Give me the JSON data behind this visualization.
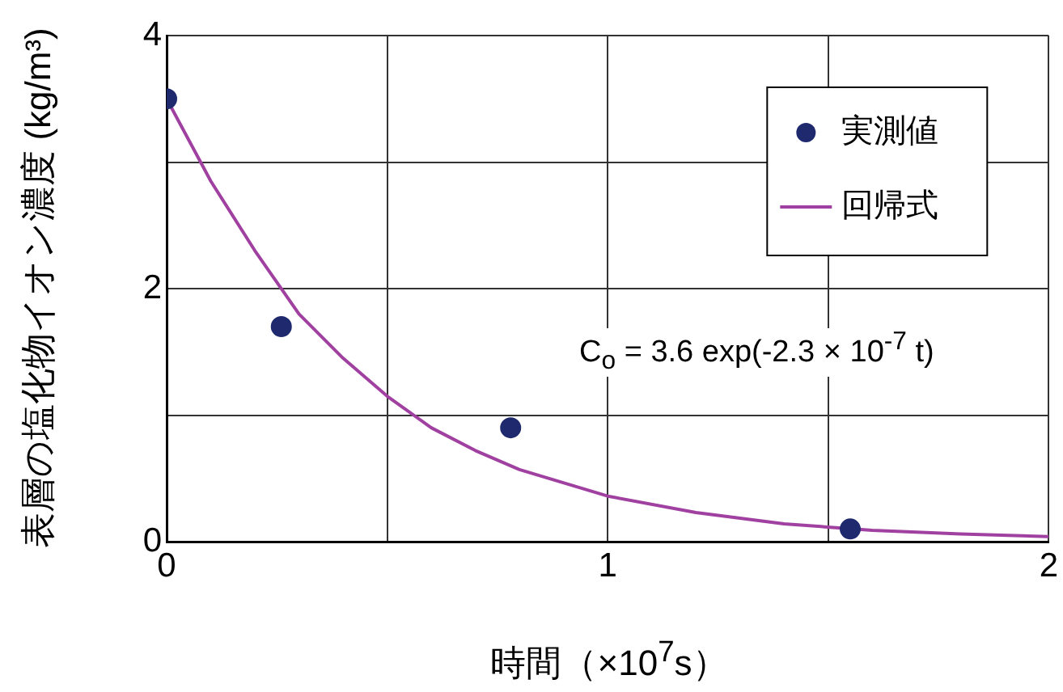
{
  "chart_data": {
    "type": "scatter",
    "xlabel": "時間（×10$^{7}$s）",
    "ylabel": "表層の塩化物イオン濃度 (kg/m³)",
    "xlim": [
      0,
      2
    ],
    "xticks": [
      0,
      {
        "value": 0.5,
        "label": null
      },
      1,
      {
        "value": 1.5,
        "label": null
      },
      2
    ],
    "ylim": [
      0,
      4
    ],
    "yticks": [
      0,
      {
        "value": 1,
        "label": null
      },
      2,
      {
        "value": 3,
        "label": null
      },
      4
    ],
    "grid": true,
    "legend": "top right",
    "marker": "circle",
    "series": [
      {
        "name": "実測値",
        "color": "#1f2a6e",
        "x": [
          0,
          0.26,
          0.78,
          1.55
        ],
        "values": [
          3.5,
          1.7,
          0.9,
          0.1
        ]
      },
      {
        "name": "回帰式",
        "type": "line",
        "color": "#a040a0",
        "marker": "none",
        "x": [
          0,
          0.1,
          0.2,
          0.3,
          0.4,
          0.5,
          0.6,
          0.7,
          0.8,
          1.0,
          1.2,
          1.4,
          1.6,
          1.8,
          2.0
        ],
        "values": [
          3.5,
          2.85,
          2.3,
          1.8,
          1.45,
          1.15,
          0.9,
          0.72,
          0.57,
          0.36,
          0.23,
          0.14,
          0.09,
          0.06,
          0.04
        ]
      }
    ],
    "annotations": [
      "C$_{o}$ = 3.6 exp(-2.3 × 10$^{-7}$ t)"
    ]
  }
}
